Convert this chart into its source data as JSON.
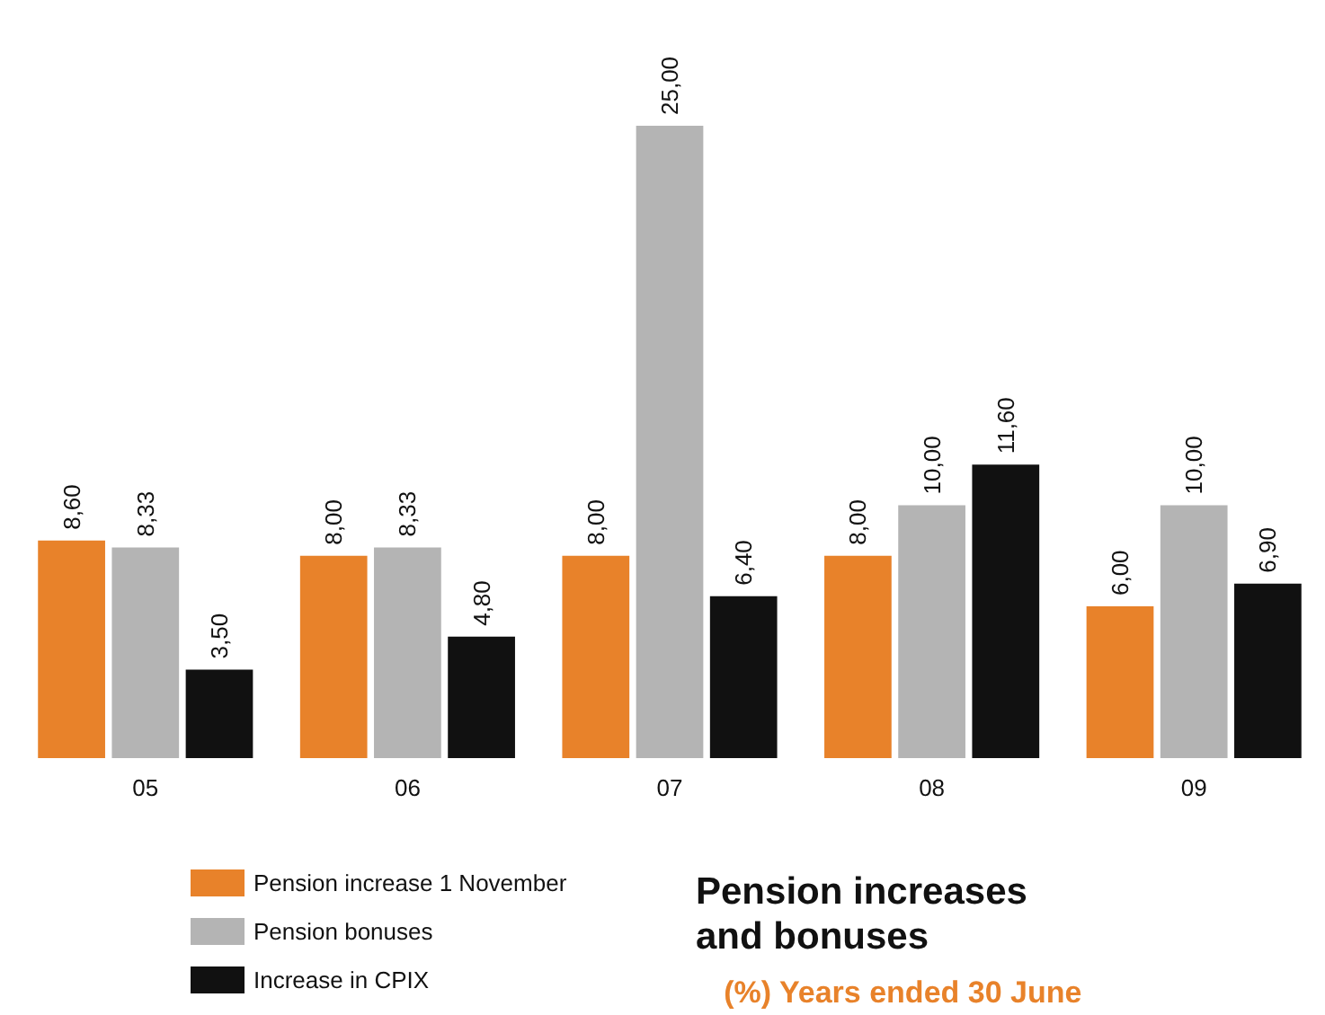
{
  "chart_data": {
    "type": "bar",
    "title": "Pension increases and bonuses",
    "subtitle": "(%) Years ended 30 June",
    "categories": [
      "05",
      "06",
      "07",
      "08",
      "09"
    ],
    "series": [
      {
        "name": "Pension increase 1 November",
        "color": "#e8822a",
        "values": [
          8.6,
          8.0,
          8.0,
          8.0,
          6.0
        ],
        "value_labels": [
          "8,60",
          "8,00",
          "8,00",
          "8,00",
          "6,00"
        ]
      },
      {
        "name": "Pension bonuses",
        "color": "#b4b4b4",
        "values": [
          8.33,
          8.33,
          25.0,
          10.0,
          10.0
        ],
        "value_labels": [
          "8,33",
          "8,33",
          "25,00",
          "10,00",
          "10,00"
        ]
      },
      {
        "name": "Increase in CPIX",
        "color": "#111111",
        "values": [
          3.5,
          4.8,
          6.4,
          11.6,
          6.9
        ],
        "value_labels": [
          "3,50",
          "4,80",
          "6,40",
          "11,60",
          "6,90"
        ]
      }
    ],
    "legend": "bottom left"
  }
}
